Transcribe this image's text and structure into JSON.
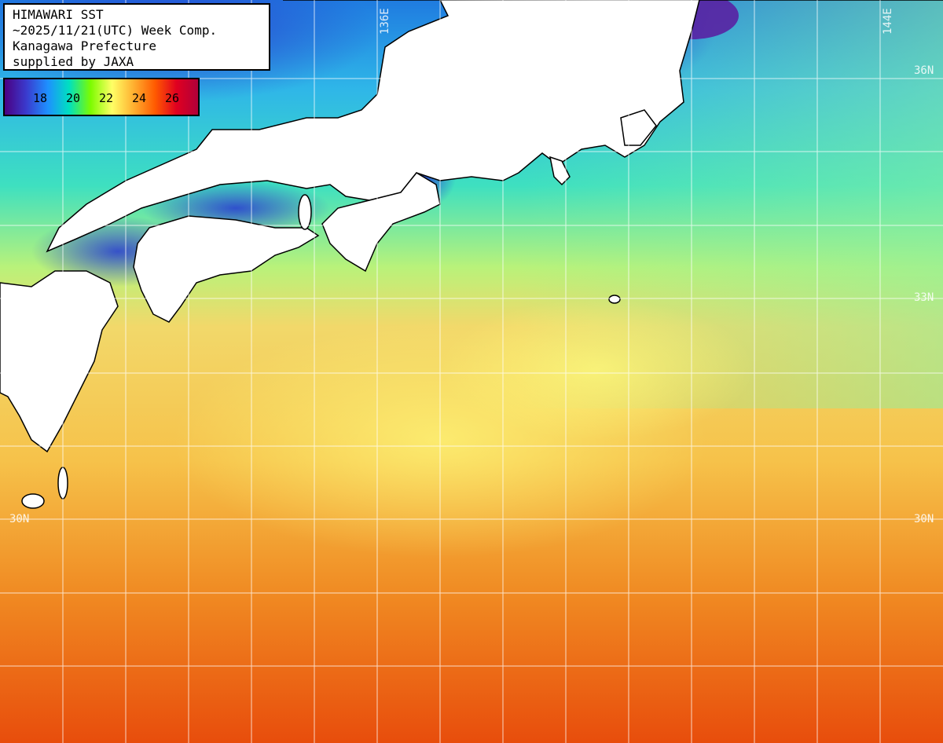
{
  "map": {
    "title_lines": [
      "HIMAWARI SST",
      "~2025/11/21(UTC) Week Comp.",
      "Kanagawa Prefecture",
      "supplied by JAXA"
    ],
    "legend": {
      "ticks": [
        "18",
        "20",
        "22",
        "24",
        "26"
      ],
      "range": [
        16,
        28
      ],
      "colors": [
        "#4b0082",
        "#3a3acd",
        "#1e90ff",
        "#00e0c0",
        "#7cfc00",
        "#ffff66",
        "#ffb030",
        "#ff5a00",
        "#e00020",
        "#b0003a"
      ]
    },
    "grid_labels": {
      "lon": [
        "136E",
        "144E"
      ],
      "lat_left": [
        "30N"
      ],
      "lat_right": [
        "36N",
        "33N",
        "30N"
      ]
    },
    "land_color": "#ffffff",
    "grid_color": "#ffffff"
  }
}
